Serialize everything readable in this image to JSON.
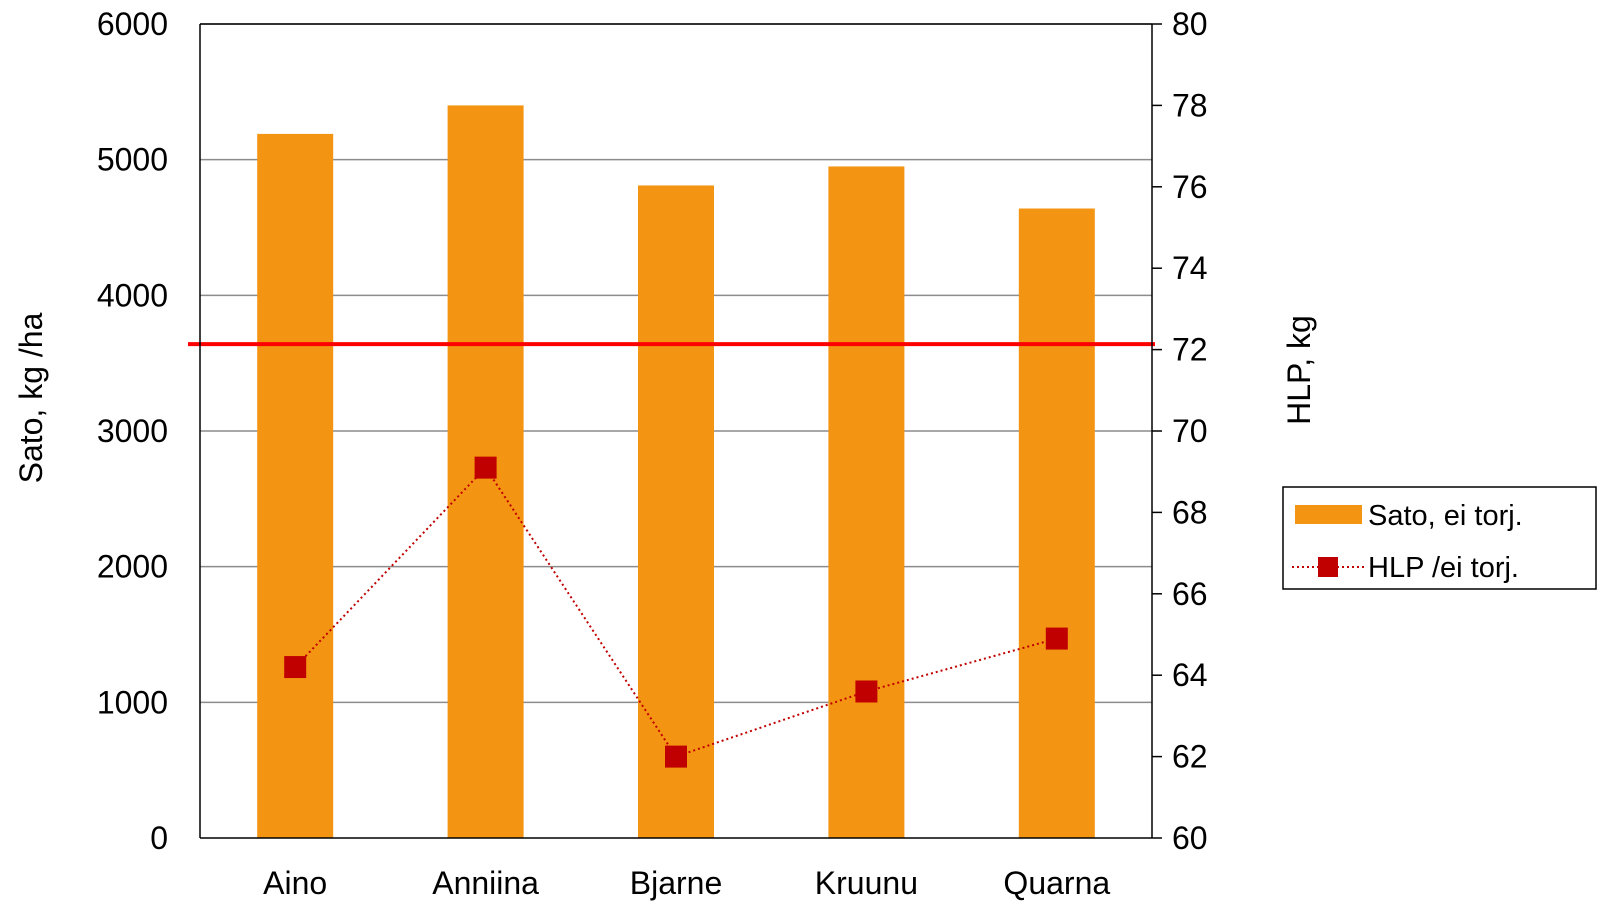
{
  "chart_data": {
    "type": "bar",
    "categories": [
      "Aino",
      "Anniina",
      "Bjarne",
      "Kruunu",
      "Quarna"
    ],
    "series": [
      {
        "name": "Sato, ei torj.",
        "type": "bar",
        "axis": "left",
        "values": [
          5190,
          5400,
          4810,
          4950,
          4640
        ],
        "color": "#F39512"
      },
      {
        "name": "HLP /ei torj.",
        "type": "line",
        "axis": "right",
        "values": [
          64.2,
          69.1,
          62.0,
          63.6,
          64.9
        ],
        "color": "#C00000",
        "line_style": "dotted",
        "marker": "square"
      }
    ],
    "reference_line": {
      "axis": "left",
      "value": 3640,
      "color": "#FF0000"
    },
    "ylabel": "Sato, kg /ha",
    "ylim": [
      0,
      6000
    ],
    "yticks": [
      "0",
      "1000",
      "2000",
      "3000",
      "4000",
      "5000",
      "6000"
    ],
    "y2label": "HLP, kg",
    "y2lim": [
      60,
      80
    ],
    "y2ticks": [
      "60",
      "62",
      "64",
      "66",
      "68",
      "70",
      "72",
      "74",
      "76",
      "78",
      "80"
    ],
    "grid": true,
    "legend_position": "right"
  }
}
